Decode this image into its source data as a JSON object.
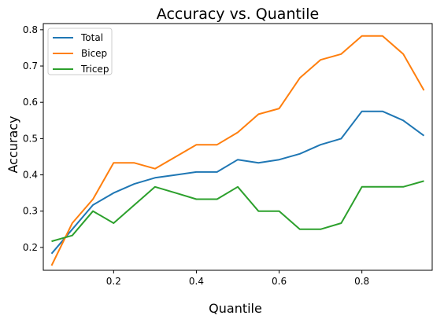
{
  "chart_data": {
    "type": "line",
    "title": "Accuracy vs. Quantile",
    "xlabel": "Quantile",
    "ylabel": "Accuracy",
    "xlim": [
      0.03,
      0.97
    ],
    "ylim": [
      0.137,
      0.817
    ],
    "xticks": [
      0.2,
      0.4,
      0.6,
      0.8
    ],
    "xtick_labels": [
      "0.2",
      "0.4",
      "0.6",
      "0.8"
    ],
    "yticks": [
      0.2,
      0.3,
      0.4,
      0.5,
      0.6,
      0.7,
      0.8
    ],
    "ytick_labels": [
      "0.2",
      "0.3",
      "0.4",
      "0.5",
      "0.6",
      "0.7",
      "0.8"
    ],
    "grid": false,
    "legend_position": "top-left",
    "x": [
      0.05,
      0.1,
      0.15,
      0.2,
      0.25,
      0.3,
      0.35,
      0.4,
      0.45,
      0.5,
      0.55,
      0.6,
      0.65,
      0.7,
      0.75,
      0.8,
      0.85,
      0.9,
      0.95
    ],
    "series": [
      {
        "name": "Total",
        "color": "#1f77b4",
        "values": [
          0.183,
          0.25,
          0.317,
          0.35,
          0.375,
          0.392,
          0.4,
          0.408,
          0.408,
          0.442,
          0.433,
          0.442,
          0.458,
          0.483,
          0.5,
          0.575,
          0.575,
          0.55,
          0.508
        ]
      },
      {
        "name": "Bicep",
        "color": "#ff7f0e",
        "values": [
          0.15,
          0.267,
          0.333,
          0.433,
          0.433,
          0.417,
          0.45,
          0.483,
          0.483,
          0.517,
          0.567,
          0.583,
          0.667,
          0.717,
          0.733,
          0.783,
          0.783,
          0.733,
          0.633
        ]
      },
      {
        "name": "Tricep",
        "color": "#2ca02c",
        "values": [
          0.217,
          0.233,
          0.3,
          0.267,
          0.317,
          0.367,
          0.35,
          0.333,
          0.333,
          0.367,
          0.3,
          0.3,
          0.25,
          0.25,
          0.267,
          0.367,
          0.367,
          0.367,
          0.383
        ]
      }
    ]
  }
}
